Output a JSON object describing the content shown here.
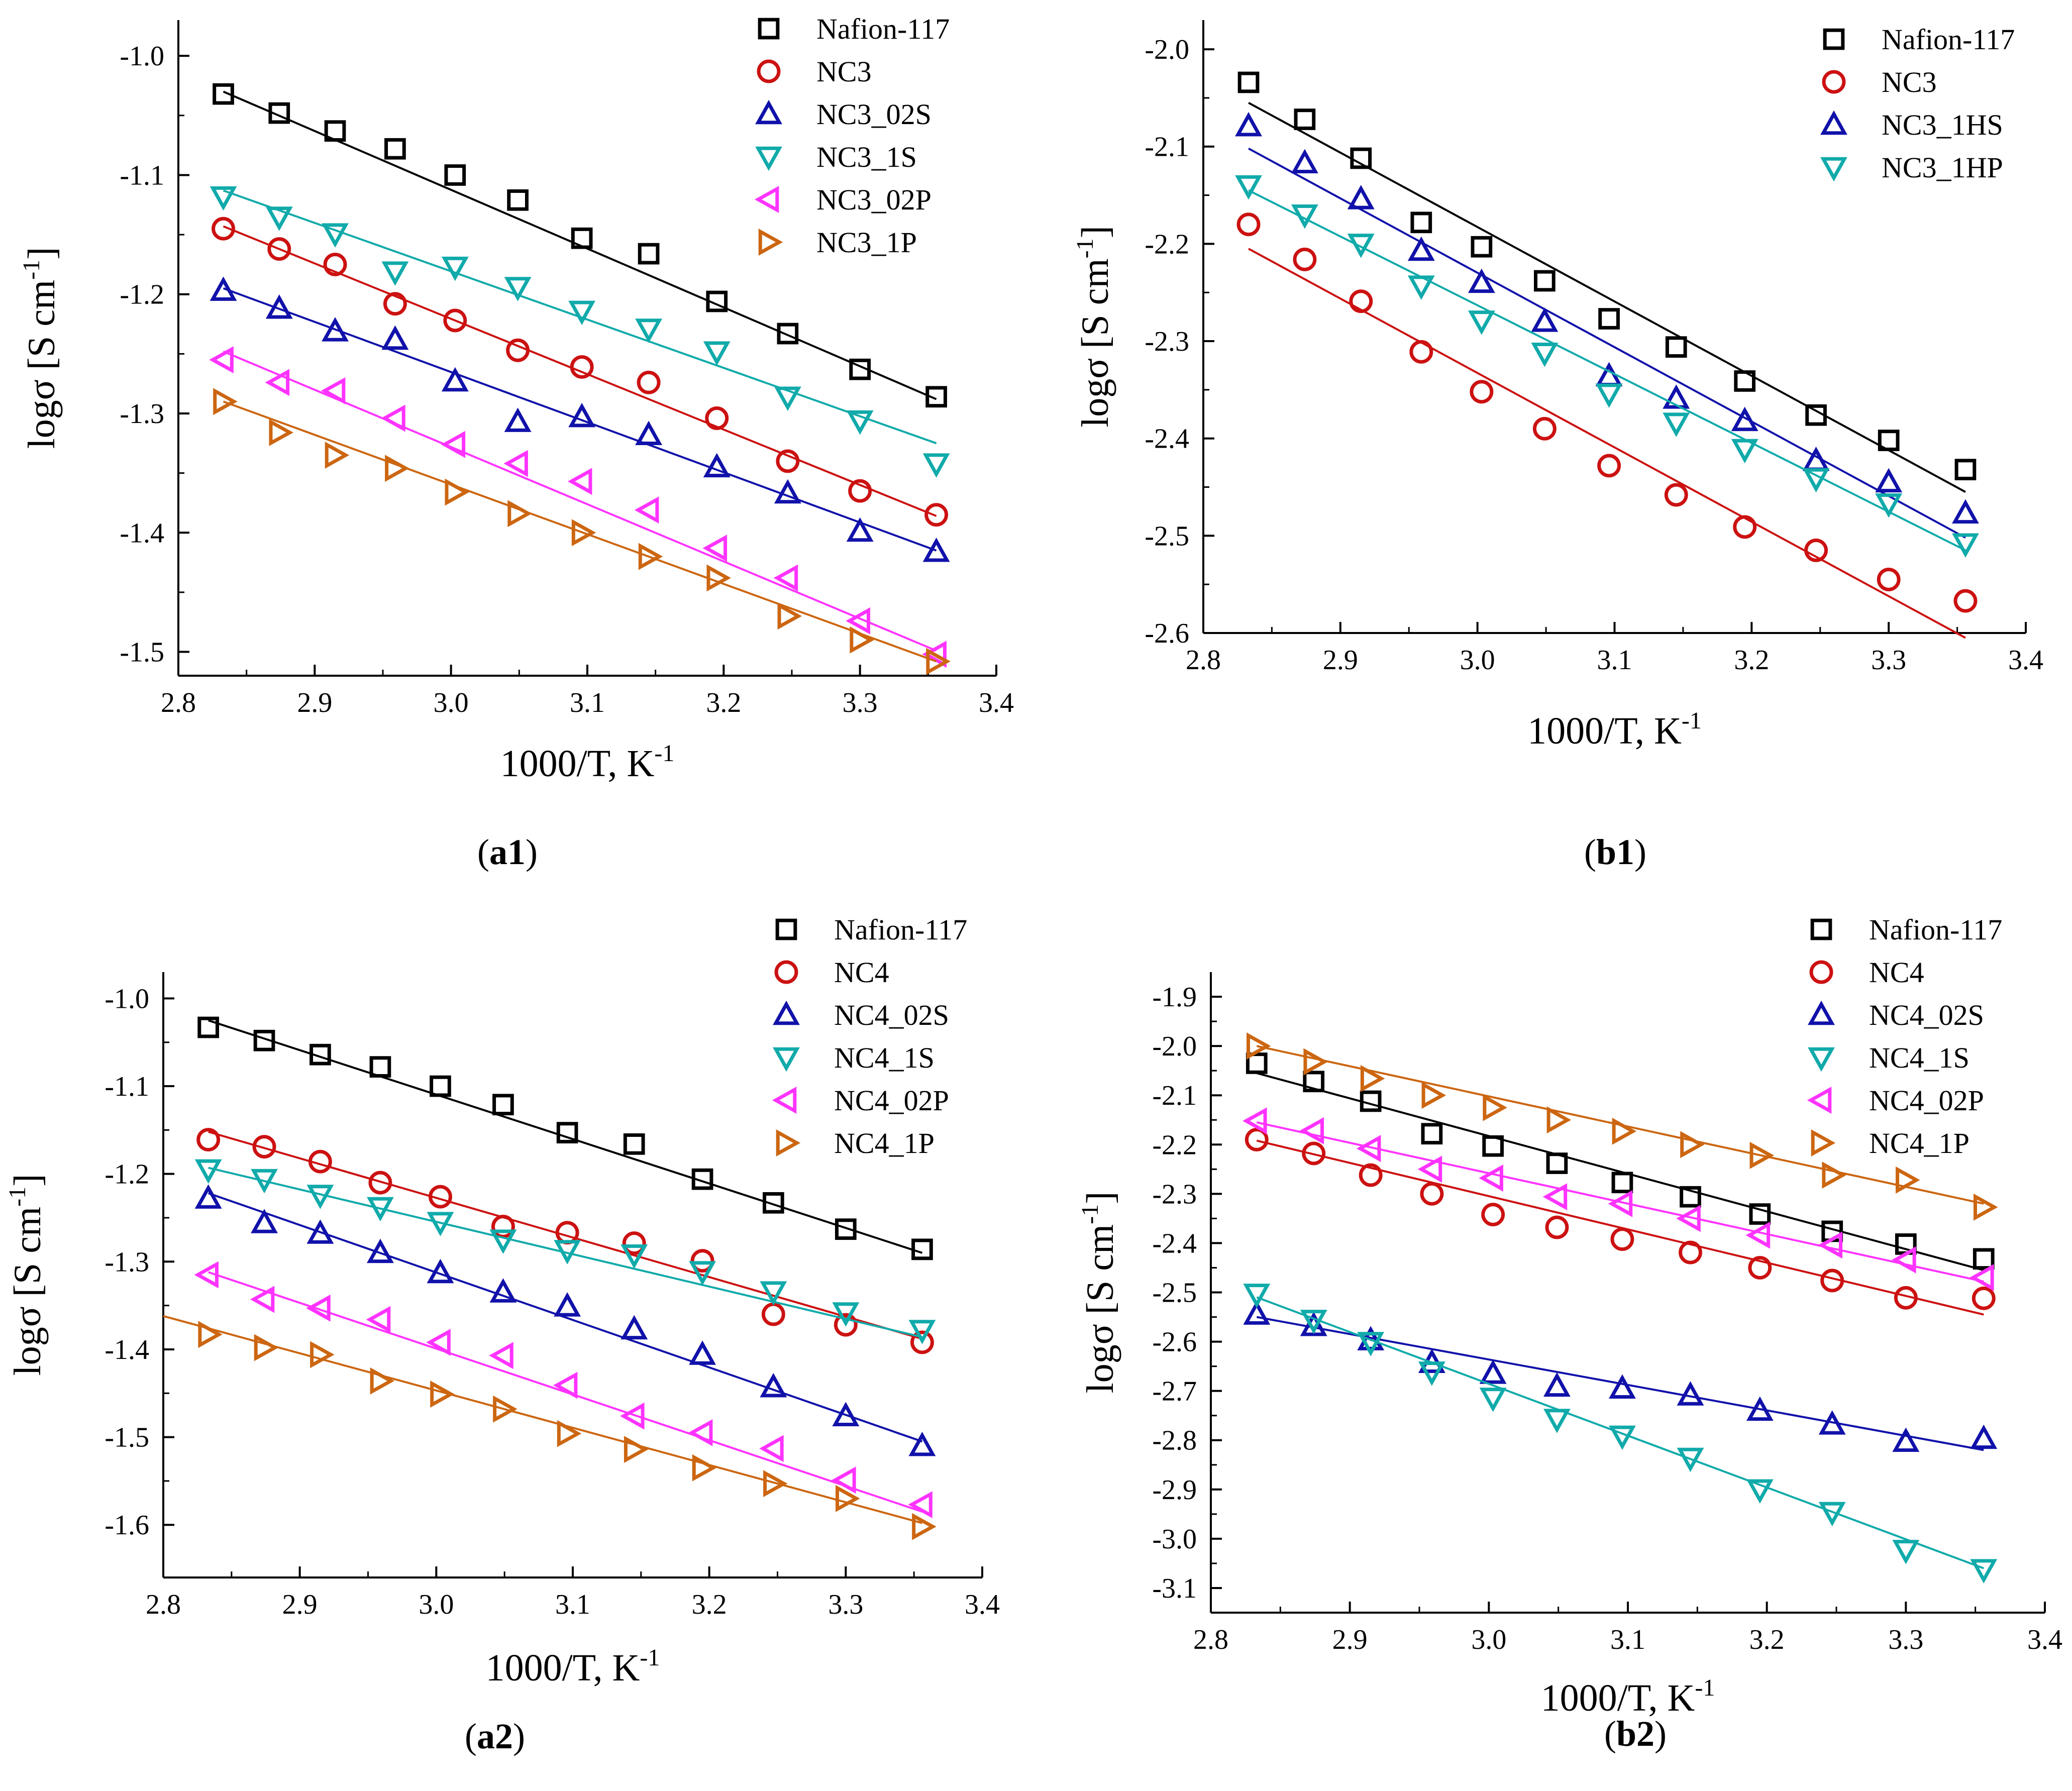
{
  "figure": {
    "panels": [
      {
        "caption_pre": "(",
        "caption_label": "a1",
        "caption_post": ")"
      },
      {
        "caption_pre": "(",
        "caption_label": "b1",
        "caption_post": ")"
      },
      {
        "caption_pre": "(",
        "caption_label": "a2",
        "caption_post": ")"
      },
      {
        "caption_pre": "(",
        "caption_label": "b2",
        "caption_post": ")"
      }
    ]
  },
  "chart_data": [
    {
      "type": "scatter",
      "panel": "a1",
      "xlabel": "1000/T, K",
      "xlabel_sup": "-1",
      "ylabel": "logσ [S cm",
      "ylabel_sup": "-1",
      "ylabel_post": "]",
      "xlim": [
        2.8,
        3.4
      ],
      "ylim": [
        -1.52,
        -0.97
      ],
      "xticks": [
        2.8,
        2.9,
        3.0,
        3.1,
        3.2,
        3.3,
        3.4
      ],
      "xtick_labels": [
        "2.8",
        "2.9",
        "3.0",
        "3.1",
        "3.2",
        "3.3",
        "3.4"
      ],
      "yticks": [
        -1.5,
        -1.4,
        -1.3,
        -1.2,
        -1.1,
        -1.0
      ],
      "ytick_labels": [
        "-1.5",
        "-1.4",
        "-1.3",
        "-1.2",
        "-1.1",
        "-1.0"
      ],
      "x": [
        2.833,
        2.874,
        2.915,
        2.959,
        3.003,
        3.049,
        3.096,
        3.145,
        3.195,
        3.247,
        3.3,
        3.356
      ],
      "series": [
        {
          "name": "Nafion-117",
          "marker": "square",
          "color": "#000000",
          "values": [
            -1.032,
            -1.048,
            -1.063,
            -1.078,
            -1.1,
            -1.121,
            -1.153,
            -1.166,
            -1.206,
            -1.233,
            -1.263,
            -1.286
          ],
          "fit": [
            -1.03,
            -1.288
          ]
        },
        {
          "name": "NC3",
          "marker": "circle",
          "color": "#cc1111",
          "values": [
            -1.145,
            -1.162,
            -1.175,
            -1.208,
            -1.222,
            -1.247,
            -1.261,
            -1.274,
            -1.304,
            -1.34,
            -1.365,
            -1.385
          ],
          "fit": [
            -1.143,
            -1.386
          ]
        },
        {
          "name": "NC3_02S",
          "marker": "triangle-up",
          "color": "#1111aa",
          "values": [
            -1.197,
            -1.212,
            -1.231,
            -1.238,
            -1.273,
            -1.307,
            -1.303,
            -1.318,
            -1.345,
            -1.367,
            -1.399,
            -1.416
          ],
          "fit": [
            -1.195,
            -1.415
          ]
        },
        {
          "name": "NC3_1S",
          "marker": "triangle-down",
          "color": "#11aaaa",
          "values": [
            -1.118,
            -1.135,
            -1.149,
            -1.181,
            -1.177,
            -1.194,
            -1.214,
            -1.229,
            -1.248,
            -1.286,
            -1.306,
            -1.342
          ],
          "fit": [
            -1.113,
            -1.325
          ]
        },
        {
          "name": "NC3_02P",
          "marker": "triangle-left",
          "color": "#ff33ff",
          "values": [
            -1.255,
            -1.274,
            -1.281,
            -1.304,
            -1.326,
            -1.342,
            -1.357,
            -1.381,
            -1.413,
            -1.438,
            -1.474,
            -1.502
          ],
          "fit": [
            -1.248,
            -1.499
          ]
        },
        {
          "name": "NC3_1P",
          "marker": "triangle-right",
          "color": "#cc6611",
          "values": [
            -1.29,
            -1.316,
            -1.335,
            -1.346,
            -1.366,
            -1.384,
            -1.4,
            -1.42,
            -1.438,
            -1.47,
            -1.49,
            -1.508
          ],
          "fit": [
            -1.29,
            -1.508
          ]
        }
      ]
    },
    {
      "type": "scatter",
      "panel": "b1",
      "xlabel": "1000/T, K",
      "xlabel_sup": "-1",
      "ylabel": "logσ [S cm",
      "ylabel_sup": "-1",
      "ylabel_post": "]",
      "xlim": [
        2.8,
        3.4
      ],
      "ylim": [
        -2.6,
        -1.97
      ],
      "xticks": [
        2.8,
        2.9,
        3.0,
        3.1,
        3.2,
        3.3,
        3.4
      ],
      "xtick_labels": [
        "2.8",
        "2.9",
        "3.0",
        "3.1",
        "3.2",
        "3.3",
        "3.4"
      ],
      "yticks": [
        -2.6,
        -2.5,
        -2.4,
        -2.3,
        -2.2,
        -2.1,
        -2.0
      ],
      "ytick_labels": [
        "-2.6",
        "-2.5",
        "-2.4",
        "-2.3",
        "-2.2",
        "-2.1",
        "-2.0"
      ],
      "x": [
        2.833,
        2.874,
        2.915,
        2.959,
        3.003,
        3.049,
        3.096,
        3.145,
        3.195,
        3.247,
        3.3,
        3.356
      ],
      "series": [
        {
          "name": "Nafion-117",
          "marker": "square",
          "color": "#000000",
          "values": [
            -2.034,
            -2.072,
            -2.112,
            -2.178,
            -2.203,
            -2.238,
            -2.277,
            -2.306,
            -2.341,
            -2.376,
            -2.402,
            -2.432
          ],
          "fit": [
            -2.055,
            -2.455
          ]
        },
        {
          "name": "NC3",
          "marker": "circle",
          "color": "#cc1111",
          "values": [
            -2.18,
            -2.216,
            -2.259,
            -2.311,
            -2.352,
            -2.39,
            -2.428,
            -2.458,
            -2.491,
            -2.515,
            -2.545,
            -2.567
          ],
          "fit": [
            -2.205,
            -2.605
          ]
        },
        {
          "name": "NC3_1HS",
          "marker": "triangle-up",
          "color": "#1111aa",
          "values": [
            -2.079,
            -2.117,
            -2.154,
            -2.207,
            -2.24,
            -2.28,
            -2.336,
            -2.359,
            -2.382,
            -2.423,
            -2.445,
            -2.477
          ],
          "fit": [
            -2.102,
            -2.502
          ]
        },
        {
          "name": "NC3_1HP",
          "marker": "triangle-down",
          "color": "#11aaaa",
          "values": [
            -2.14,
            -2.17,
            -2.2,
            -2.243,
            -2.279,
            -2.312,
            -2.354,
            -2.384,
            -2.411,
            -2.441,
            -2.467,
            -2.508
          ],
          "fit": [
            -2.145,
            -2.515
          ]
        }
      ]
    },
    {
      "type": "scatter",
      "panel": "a2",
      "xlabel": "1000/T, K",
      "xlabel_sup": "-1",
      "ylabel": "logσ [S cm",
      "ylabel_sup": "-1",
      "ylabel_post": "]",
      "xlim": [
        2.8,
        3.4
      ],
      "ylim": [
        -1.66,
        -0.97
      ],
      "xticks": [
        2.8,
        2.9,
        3.0,
        3.1,
        3.2,
        3.3,
        3.4
      ],
      "xtick_labels": [
        "2.8",
        "2.9",
        "3.0",
        "3.1",
        "3.2",
        "3.3",
        "3.4"
      ],
      "yticks": [
        -1.6,
        -1.5,
        -1.4,
        -1.3,
        -1.2,
        -1.1,
        -1.0
      ],
      "ytick_labels": [
        "-1.6",
        "-1.5",
        "-1.4",
        "-1.3",
        "-1.2",
        "-1.1",
        "-1.0"
      ],
      "x": [
        2.833,
        2.874,
        2.915,
        2.959,
        3.003,
        3.049,
        3.096,
        3.145,
        3.195,
        3.247,
        3.3,
        3.356
      ],
      "series": [
        {
          "name": "Nafion-117",
          "marker": "square",
          "color": "#000000",
          "values": [
            -1.033,
            -1.048,
            -1.064,
            -1.078,
            -1.1,
            -1.121,
            -1.153,
            -1.166,
            -1.206,
            -1.233,
            -1.263,
            -1.286
          ],
          "fit": [
            -1.025,
            -1.29
          ]
        },
        {
          "name": "NC4",
          "marker": "circle",
          "color": "#cc1111",
          "values": [
            -1.161,
            -1.169,
            -1.186,
            -1.21,
            -1.226,
            -1.26,
            -1.267,
            -1.279,
            -1.299,
            -1.36,
            -1.372,
            -1.392
          ],
          "fit": [
            -1.152,
            -1.388
          ]
        },
        {
          "name": "NC4_02S",
          "marker": "triangle-up",
          "color": "#1111aa",
          "values": [
            -1.228,
            -1.256,
            -1.268,
            -1.29,
            -1.313,
            -1.335,
            -1.351,
            -1.377,
            -1.406,
            -1.443,
            -1.476,
            -1.51
          ],
          "fit": [
            -1.222,
            -1.505
          ]
        },
        {
          "name": "NC4_1S",
          "marker": "triangle-down",
          "color": "#11aaaa",
          "values": [
            -1.195,
            -1.206,
            -1.224,
            -1.238,
            -1.255,
            -1.275,
            -1.287,
            -1.292,
            -1.311,
            -1.334,
            -1.358,
            -1.378
          ],
          "fit": [
            -1.193,
            -1.386
          ]
        },
        {
          "name": "NC4_02P",
          "marker": "triangle-left",
          "color": "#ff33ff",
          "values": [
            -1.315,
            -1.343,
            -1.353,
            -1.366,
            -1.392,
            -1.407,
            -1.441,
            -1.476,
            -1.495,
            -1.513,
            -1.549,
            -1.577
          ],
          "fit": [
            -1.312,
            -1.585
          ]
        },
        {
          "name": "NC4_1P",
          "marker": "triangle-right",
          "color": "#cc6611",
          "values": [
            -1.383,
            -1.398,
            -1.406,
            -1.436,
            -1.451,
            -1.468,
            -1.496,
            -1.514,
            -1.535,
            -1.553,
            -1.57,
            -1.602
          ],
          "fit": [
            -1.362,
            -1.598
          ],
          "fit_x": [
            2.8,
            3.356
          ]
        }
      ]
    },
    {
      "type": "scatter",
      "panel": "b2",
      "xlabel": "1000/T, K",
      "xlabel_sup": "-1",
      "ylabel": "logσ [S cm",
      "ylabel_sup": "-1",
      "ylabel_post": "]",
      "xlim": [
        2.8,
        3.4
      ],
      "ylim": [
        -3.15,
        -1.85
      ],
      "xticks": [
        2.8,
        2.9,
        3.0,
        3.1,
        3.2,
        3.3,
        3.4
      ],
      "xtick_labels": [
        "2.8",
        "2.9",
        "3.0",
        "3.1",
        "3.2",
        "3.3",
        "3.4"
      ],
      "yticks": [
        -3.1,
        -3.0,
        -2.9,
        -2.8,
        -2.7,
        -2.6,
        -2.5,
        -2.4,
        -2.3,
        -2.2,
        -2.1,
        -2.0,
        -1.9
      ],
      "ytick_labels": [
        "-3.1",
        "-3.0",
        "-2.9",
        "-2.8",
        "-2.7",
        "-2.6",
        "-2.5",
        "-2.4",
        "-2.3",
        "-2.2",
        "-2.1",
        "-2.0",
        "-1.9"
      ],
      "x": [
        2.833,
        2.874,
        2.915,
        2.959,
        3.003,
        3.049,
        3.096,
        3.145,
        3.195,
        3.247,
        3.3,
        3.356
      ],
      "series": [
        {
          "name": "Nafion-117",
          "marker": "square",
          "color": "#000000",
          "values": [
            -2.035,
            -2.072,
            -2.112,
            -2.178,
            -2.203,
            -2.238,
            -2.277,
            -2.306,
            -2.341,
            -2.376,
            -2.402,
            -2.432
          ],
          "fit": [
            -2.055,
            -2.455
          ]
        },
        {
          "name": "NC4",
          "marker": "circle",
          "color": "#cc1111",
          "values": [
            -2.19,
            -2.218,
            -2.262,
            -2.3,
            -2.342,
            -2.368,
            -2.392,
            -2.419,
            -2.45,
            -2.476,
            -2.511,
            -2.512
          ],
          "fit": [
            -2.192,
            -2.545
          ]
        },
        {
          "name": "NC4_02S",
          "marker": "triangle-up",
          "color": "#1111aa",
          "values": [
            -2.545,
            -2.568,
            -2.597,
            -2.643,
            -2.665,
            -2.691,
            -2.695,
            -2.709,
            -2.74,
            -2.768,
            -2.803,
            -2.797
          ],
          "fit": [
            -2.55,
            -2.82
          ]
        },
        {
          "name": "NC4_1S",
          "marker": "triangle-down",
          "color": "#11aaaa",
          "values": [
            -2.503,
            -2.556,
            -2.601,
            -2.661,
            -2.714,
            -2.757,
            -2.791,
            -2.836,
            -2.9,
            -2.946,
            -3.023,
            -3.062
          ],
          "fit": [
            -2.51,
            -3.06
          ]
        },
        {
          "name": "NC4_02P",
          "marker": "triangle-left",
          "color": "#ff33ff",
          "values": [
            -2.152,
            -2.172,
            -2.208,
            -2.25,
            -2.268,
            -2.306,
            -2.32,
            -2.35,
            -2.384,
            -2.404,
            -2.434,
            -2.47
          ],
          "fit": [
            -2.155,
            -2.478
          ]
        },
        {
          "name": "NC4_1P",
          "marker": "triangle-right",
          "color": "#cc6611",
          "values": [
            -2.0,
            -2.032,
            -2.066,
            -2.1,
            -2.125,
            -2.15,
            -2.173,
            -2.2,
            -2.222,
            -2.262,
            -2.272,
            -2.327
          ],
          "fit": [
            -2.0,
            -2.32
          ]
        }
      ]
    }
  ]
}
